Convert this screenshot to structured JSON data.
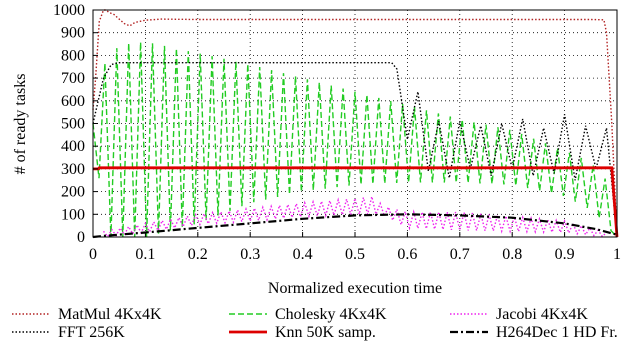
{
  "chart_data": {
    "type": "line",
    "xlabel": "Normalized execution time",
    "ylabel": "# of ready tasks",
    "xlim": [
      0,
      1
    ],
    "ylim": [
      0,
      1000
    ],
    "xticks": [
      "0",
      "0.1",
      "0.2",
      "0.3",
      "0.4",
      "0.5",
      "0.6",
      "0.7",
      "0.8",
      "0.9",
      "1"
    ],
    "yticks": [
      "0",
      "100",
      "200",
      "300",
      "400",
      "500",
      "600",
      "700",
      "800",
      "900",
      "1000"
    ],
    "grid": true,
    "legend_position": "bottom",
    "series": [
      {
        "name": "MatMul  4Kx4K",
        "color": "#b22222",
        "style": "dotted",
        "x": [
          0,
          0.005,
          0.012,
          0.02,
          0.025,
          0.03,
          0.04,
          0.05,
          0.06,
          0.07,
          0.08,
          0.1,
          0.13,
          0.2,
          0.5,
          0.8,
          0.95,
          0.975,
          0.98,
          0.99,
          1.0
        ],
        "y": [
          560,
          700,
          950,
          1000,
          1000,
          990,
          980,
          960,
          940,
          930,
          945,
          955,
          960,
          958,
          958,
          958,
          958,
          957,
          900,
          500,
          0
        ]
      },
      {
        "name": "Cholesky 4Kx4K",
        "color": "#22cc22",
        "style": "dashed",
        "x": [
          0,
          0.01,
          0.02,
          0.03,
          0.04,
          0.05,
          0.1,
          0.2,
          0.3,
          0.4,
          0.5,
          0.6,
          0.7,
          0.8,
          0.9,
          0.95,
          0.98,
          1.0
        ],
        "y_upper": [
          500,
          720,
          760,
          780,
          810,
          850,
          860,
          810,
          760,
          700,
          640,
          580,
          520,
          470,
          380,
          330,
          250,
          0
        ],
        "y_lower": [
          500,
          300,
          0,
          0,
          0,
          0,
          0,
          60,
          150,
          200,
          230,
          240,
          240,
          230,
          180,
          120,
          50,
          0
        ]
      },
      {
        "name": "Jacobi 4Kx4K",
        "color": "#ee22ee",
        "style": "dotted",
        "x": [
          0.02,
          0.1,
          0.2,
          0.3,
          0.4,
          0.5,
          0.54,
          0.55,
          0.6,
          0.7,
          0.8,
          0.9,
          0.98
        ],
        "y_upper": [
          25,
          60,
          100,
          125,
          150,
          170,
          180,
          140,
          110,
          110,
          90,
          70,
          20
        ],
        "y_lower": [
          0,
          20,
          55,
          70,
          90,
          100,
          100,
          100,
          40,
          30,
          25,
          20,
          0
        ]
      },
      {
        "name": "FFT 256K",
        "color": "#000000",
        "style": "dotted",
        "x": [
          0,
          0.01,
          0.02,
          0.025,
          0.03,
          0.035,
          0.05,
          0.1,
          0.2,
          0.3,
          0.4,
          0.5,
          0.57,
          0.58,
          0.6,
          0.62,
          0.64,
          0.66,
          0.68,
          0.7,
          0.72,
          0.74,
          0.76,
          0.78,
          0.8,
          0.82,
          0.84,
          0.86,
          0.88,
          0.9,
          0.92,
          0.94,
          0.96,
          0.98,
          1.0
        ],
        "y": [
          500,
          600,
          700,
          720,
          740,
          760,
          768,
          768,
          768,
          768,
          768,
          768,
          768,
          740,
          430,
          640,
          290,
          510,
          260,
          510,
          300,
          490,
          270,
          500,
          300,
          520,
          270,
          480,
          280,
          540,
          250,
          490,
          300,
          480,
          0
        ]
      },
      {
        "name": "Knn 50K samp.",
        "color": "#dd0000",
        "style": "solid",
        "x": [
          0,
          0.01,
          0.012,
          0.99,
          1.0
        ],
        "y": [
          300,
          300,
          305,
          305,
          0
        ]
      },
      {
        "name": "H264Dec 1 HD Fr.",
        "color": "#000000",
        "style": "dashdot",
        "x": [
          0,
          0.02,
          0.1,
          0.2,
          0.3,
          0.4,
          0.5,
          0.6,
          0.7,
          0.8,
          0.9,
          0.96,
          1.0
        ],
        "y": [
          0,
          5,
          20,
          40,
          60,
          80,
          95,
          100,
          95,
          85,
          60,
          35,
          10
        ]
      }
    ]
  }
}
